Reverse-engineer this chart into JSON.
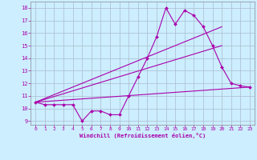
{
  "xlabel": "Windchill (Refroidissement éolien,°C)",
  "xlim": [
    -0.5,
    23.5
  ],
  "ylim": [
    8.7,
    18.5
  ],
  "yticks": [
    9,
    10,
    11,
    12,
    13,
    14,
    15,
    16,
    17,
    18
  ],
  "xticks": [
    0,
    1,
    2,
    3,
    4,
    5,
    6,
    7,
    8,
    9,
    10,
    11,
    12,
    13,
    14,
    15,
    16,
    17,
    18,
    19,
    20,
    21,
    22,
    23
  ],
  "bg_color": "#cceeff",
  "line_color": "#aa00aa",
  "grid_color": "#aabbcc",
  "series": [
    {
      "x": [
        0,
        1,
        2,
        3,
        4,
        5,
        6,
        7,
        8,
        9,
        10,
        11,
        12,
        13,
        14,
        15,
        16,
        17,
        18,
        19,
        20,
        21,
        22,
        23
      ],
      "y": [
        10.5,
        10.3,
        10.3,
        10.3,
        10.3,
        9.0,
        9.8,
        9.8,
        9.5,
        9.5,
        11.0,
        12.5,
        14.0,
        15.7,
        18.0,
        16.7,
        17.8,
        17.4,
        16.5,
        15.0,
        13.3,
        12.0,
        11.8,
        11.7
      ]
    },
    {
      "x": [
        0,
        23
      ],
      "y": [
        10.5,
        11.7
      ]
    },
    {
      "x": [
        0,
        20
      ],
      "y": [
        10.5,
        15.0
      ]
    },
    {
      "x": [
        0,
        20
      ],
      "y": [
        10.5,
        16.5
      ]
    }
  ]
}
